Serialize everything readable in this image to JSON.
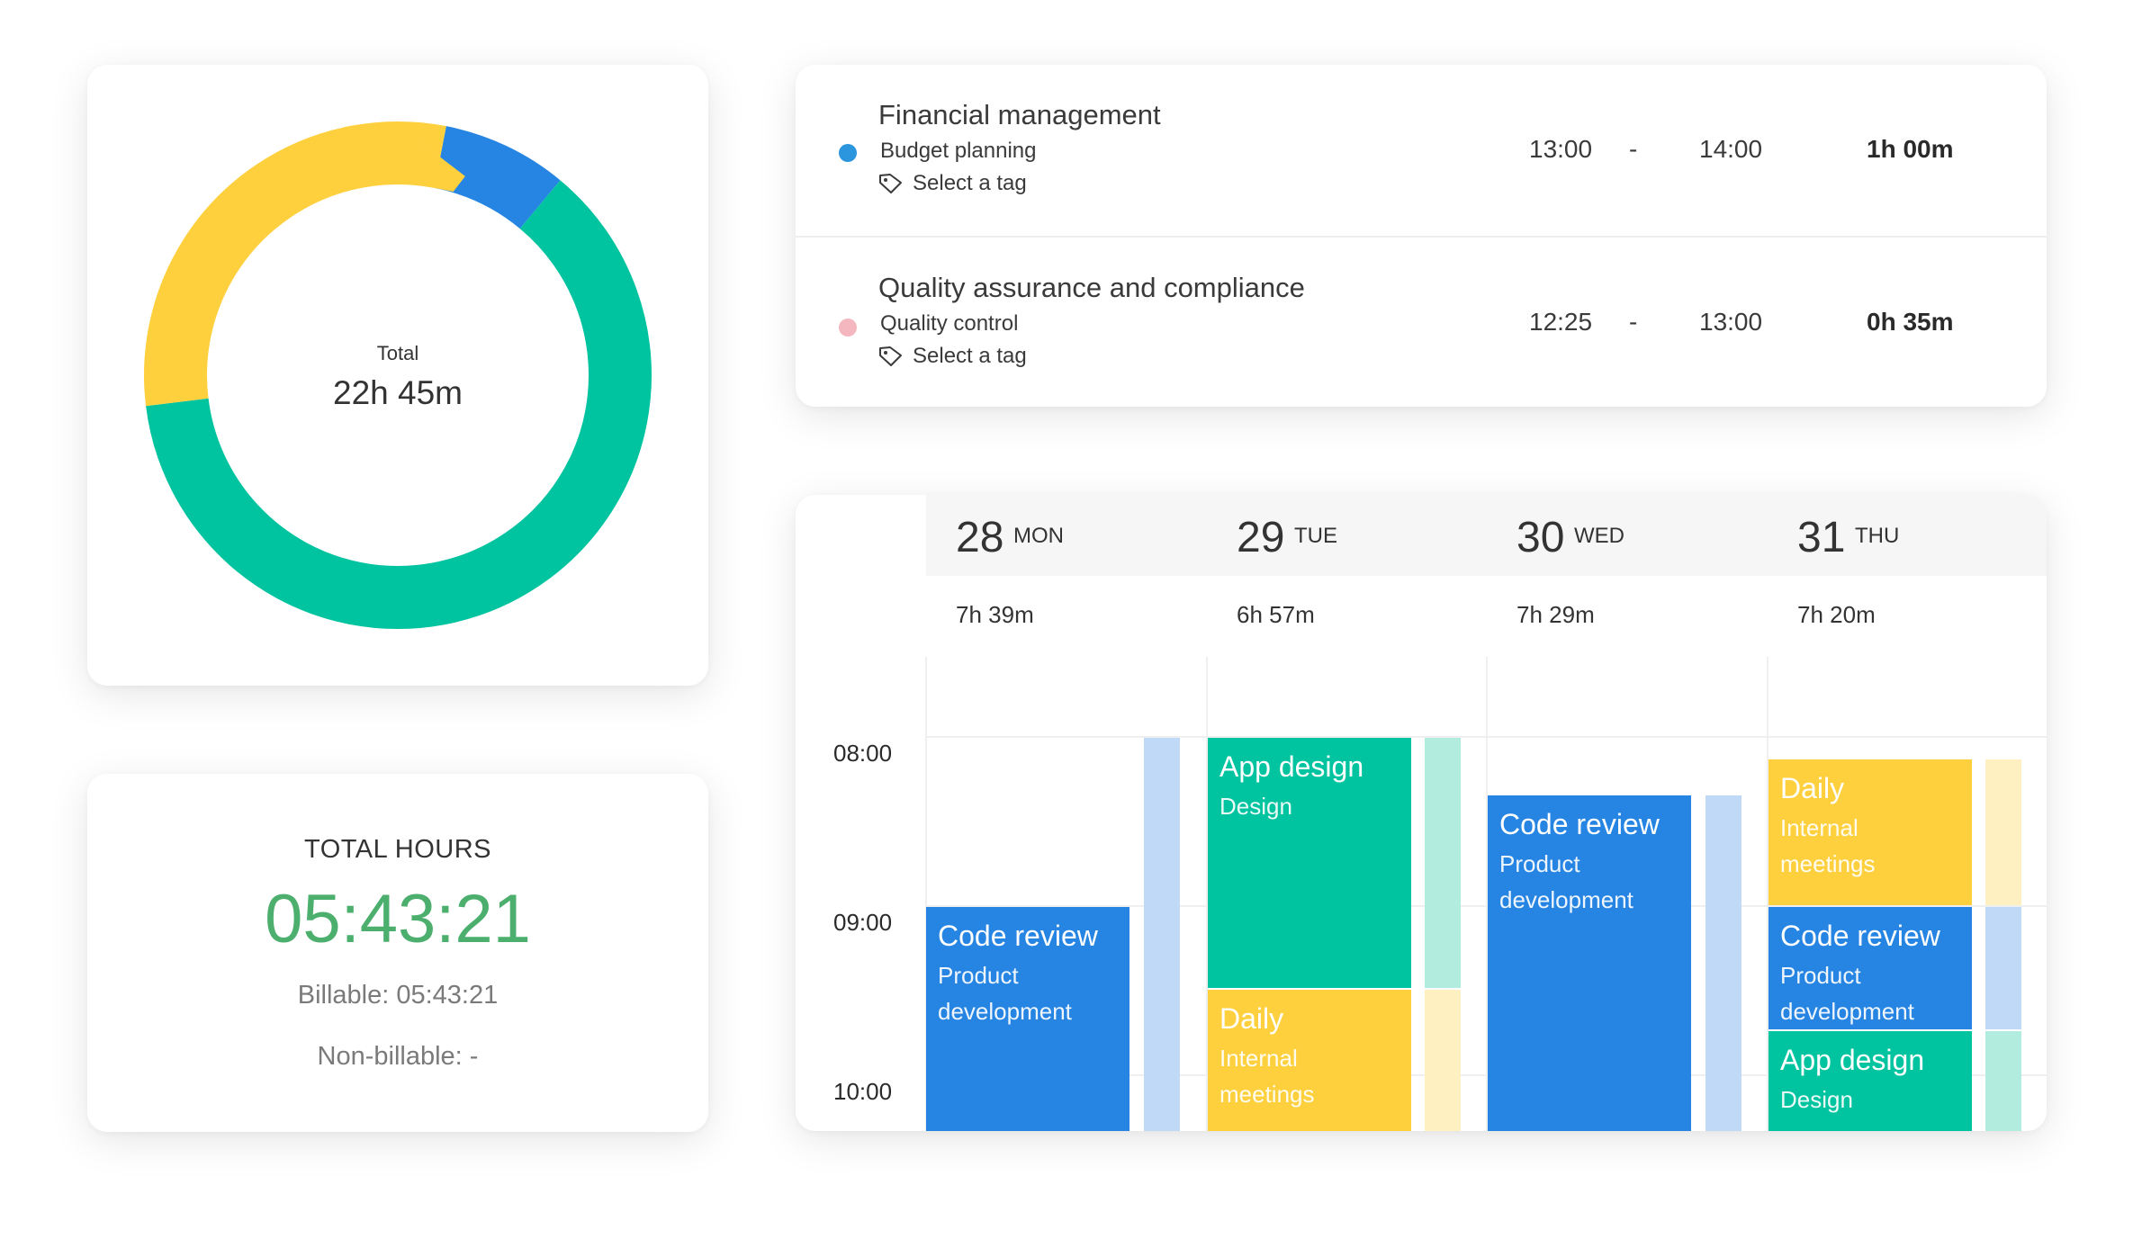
{
  "donut": {
    "total_label": "Total",
    "total_value": "22h 45m",
    "segments": [
      {
        "color": "#2684e3",
        "fraction": 0.08
      },
      {
        "color": "#00c39f",
        "fraction": 0.62
      },
      {
        "color": "#fed03e",
        "fraction": 0.3
      }
    ]
  },
  "hours": {
    "title": "TOTAL HOURS",
    "value": "05:43:21",
    "billable": "Billable: 05:43:21",
    "nonbillable": "Non-billable: -"
  },
  "entries": [
    {
      "project": "Financial management",
      "task": "Budget planning",
      "tag": "Select a tag",
      "start": "13:00",
      "dash": "-",
      "end": "14:00",
      "duration": "1h 00m",
      "dot_color": "#2b95de"
    },
    {
      "project": "Quality assurance and compliance",
      "task": "Quality control",
      "tag": "Select a tag",
      "start": "12:25",
      "dash": "-",
      "end": "13:00",
      "duration": "0h 35m",
      "dot_color": "#f4b7bf"
    }
  ],
  "calendar": {
    "days": [
      {
        "num": "28",
        "name": "MON",
        "total": "7h 39m"
      },
      {
        "num": "29",
        "name": "TUE",
        "total": "6h 57m"
      },
      {
        "num": "30",
        "name": "WED",
        "total": "7h 29m"
      },
      {
        "num": "31",
        "name": "THU",
        "total": "7h 20m"
      }
    ],
    "times": [
      "08:00",
      "09:00",
      "10:00"
    ],
    "events": {
      "mon_code_review": {
        "title": "Code review",
        "sub1": "Product",
        "sub2": "development"
      },
      "tue_app_design": {
        "title": "App design",
        "sub1": "Design"
      },
      "tue_daily": {
        "title": "Daily",
        "sub1": "Internal",
        "sub2": "meetings"
      },
      "wed_code_review": {
        "title": "Code review",
        "sub1": "Product",
        "sub2": "development"
      },
      "thu_daily": {
        "title": "Daily",
        "sub1": "Internal",
        "sub2": "meetings"
      },
      "thu_code_review": {
        "title": "Code review",
        "sub1": "Product",
        "sub2": "development"
      },
      "thu_app_design": {
        "title": "App design",
        "sub1": "Design"
      }
    }
  }
}
